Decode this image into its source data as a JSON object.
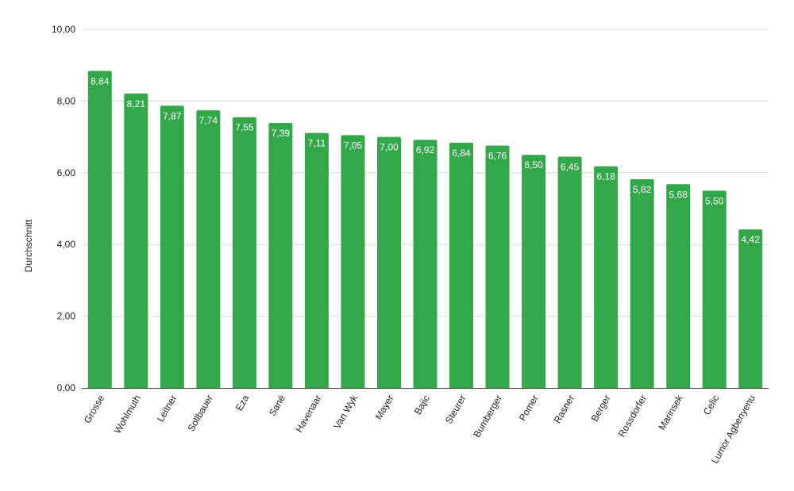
{
  "chart_data": {
    "type": "bar",
    "title": "",
    "xlabel": "",
    "ylabel": "Durchschnitt",
    "ylim": [
      0,
      10
    ],
    "yticks": [
      "0,00",
      "2,00",
      "4,00",
      "6,00",
      "8,00",
      "10,00"
    ],
    "ytick_values": [
      0,
      2,
      4,
      6,
      8,
      10
    ],
    "grid": true,
    "bar_color": "#34a74a",
    "categories": [
      "Grosse",
      "Wohlmuth",
      "Leitner",
      "Sollbauer",
      "Eza",
      "Sané",
      "Havenaar",
      "Van Wyk",
      "Mayer",
      "Bajic",
      "Steurer",
      "Bumberger",
      "Pomer",
      "Rasner",
      "Berger",
      "Rossdorfer",
      "Marinsek",
      "Celic",
      "Lumor Agbenyenu"
    ],
    "values": [
      8.84,
      8.21,
      7.87,
      7.74,
      7.55,
      7.39,
      7.11,
      7.05,
      7.0,
      6.92,
      6.84,
      6.76,
      6.5,
      6.45,
      6.18,
      5.82,
      5.68,
      5.5,
      4.42
    ],
    "value_labels": [
      "8,84",
      "8,21",
      "7,87",
      "7,74",
      "7,55",
      "7,39",
      "7,11",
      "7,05",
      "7,00",
      "6,92",
      "6,84",
      "6,76",
      "6,50",
      "6,45",
      "6,18",
      "5,82",
      "5,68",
      "5,50",
      "4,42"
    ]
  }
}
